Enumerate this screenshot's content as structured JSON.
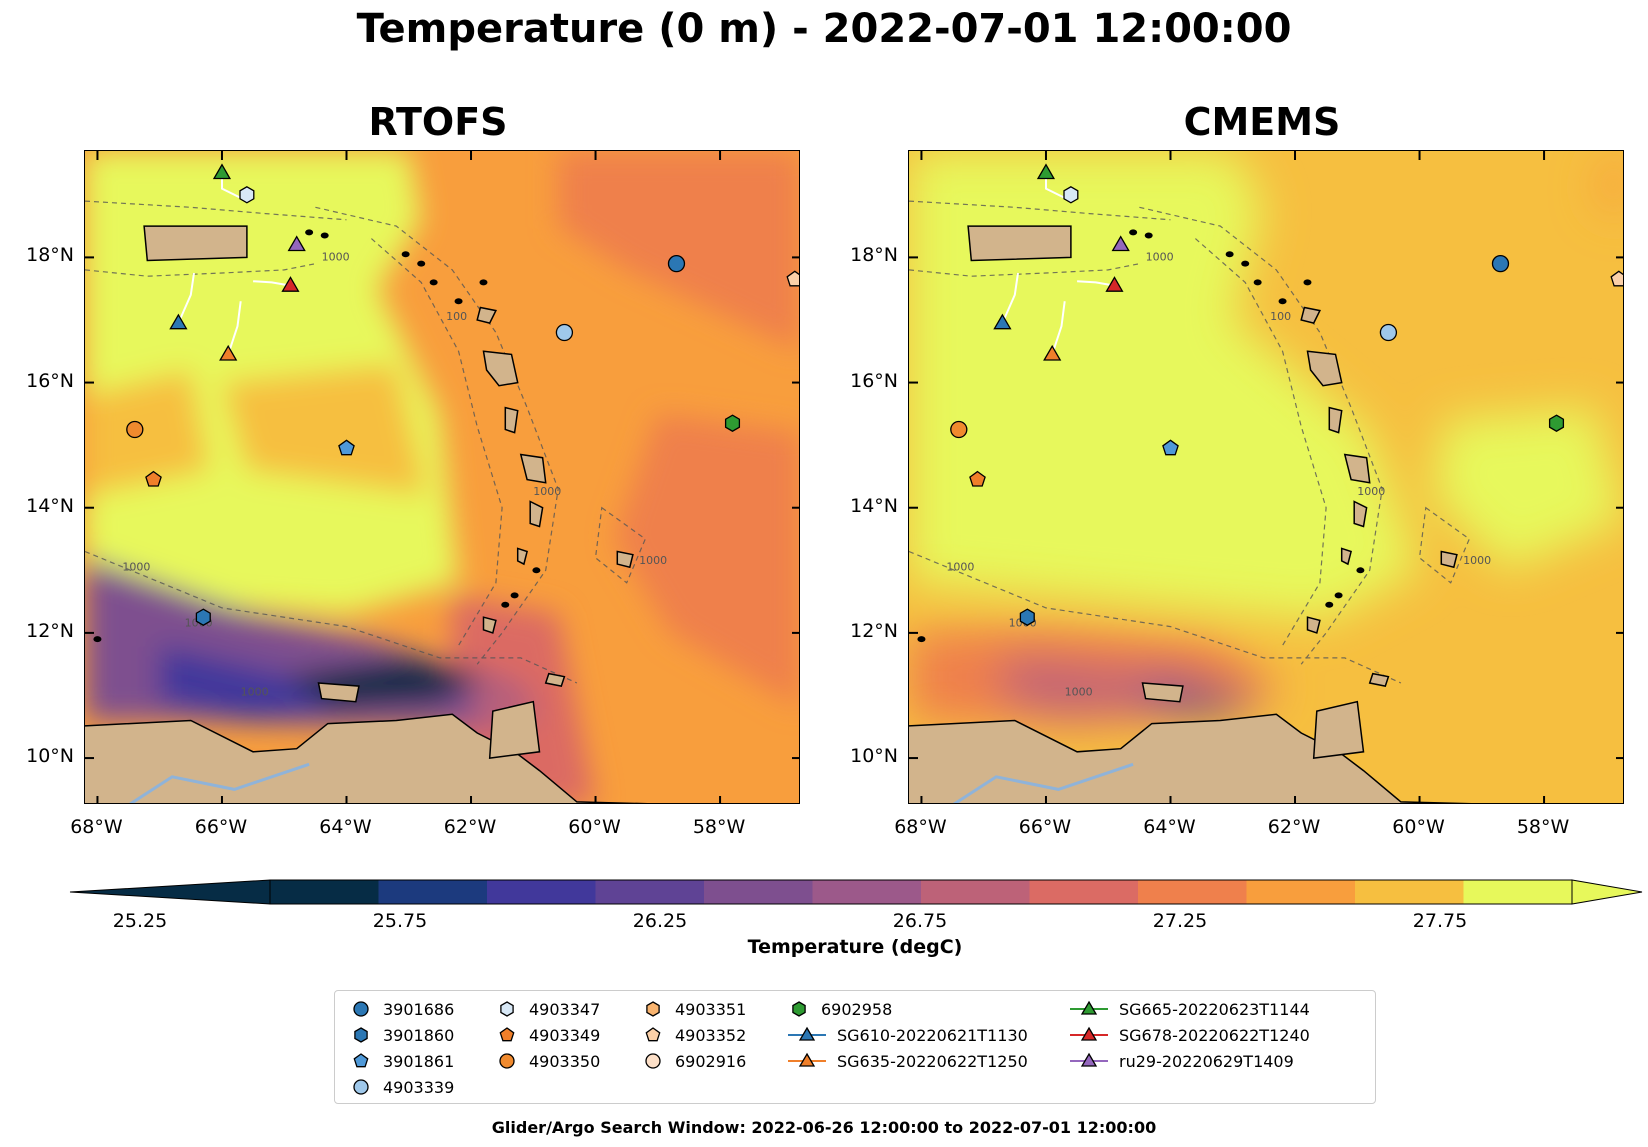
{
  "title": "Temperature (0 m) - 2022-07-01 12:00:00",
  "panels": [
    {
      "name": "RTOFS"
    },
    {
      "name": "CMEMS"
    }
  ],
  "lat_ticks": [
    "18°N",
    "16°N",
    "14°N",
    "12°N",
    "10°N"
  ],
  "lon_ticks": [
    "68°W",
    "66°W",
    "64°W",
    "62°W",
    "60°W",
    "58°W"
  ],
  "extent": {
    "lon_min": -68.2,
    "lon_max": -56.7,
    "lat_min": 9.25,
    "lat_max": 19.7
  },
  "bathymetry_labels": [
    "1000",
    "100",
    "1000",
    "1000",
    "1000",
    "1000",
    "1000"
  ],
  "colorbar": {
    "title": "Temperature (degC)",
    "tick_labels": [
      "25.25",
      "25.75",
      "26.25",
      "26.75",
      "27.25",
      "27.75"
    ],
    "colors": [
      "#062c45",
      "#1c3a7e",
      "#41389b",
      "#5f4395",
      "#7e4f8f",
      "#9c598a",
      "#bd6278",
      "#db6b64",
      "#ef804c",
      "#f89e3d",
      "#f6bf40",
      "#e7f85b"
    ]
  },
  "legend": [
    {
      "label": "3901686",
      "marker": "circle",
      "color": "#2b77b4"
    },
    {
      "label": "3901860",
      "marker": "hexagon",
      "color": "#2b77b4"
    },
    {
      "label": "3901861",
      "marker": "pentagon",
      "color": "#4f99d8"
    },
    {
      "label": "4903339",
      "marker": "circle",
      "color": "#9fc8ea"
    },
    {
      "label": "4903347",
      "marker": "hexagon",
      "color": "#d8e8f6"
    },
    {
      "label": "4903349",
      "marker": "pentagon",
      "color": "#f07f2a"
    },
    {
      "label": "4903350",
      "marker": "circle",
      "color": "#f08a2e"
    },
    {
      "label": "4903351",
      "marker": "hexagon",
      "color": "#f9b46f"
    },
    {
      "label": "4903352",
      "marker": "pentagon",
      "color": "#fbd0a8"
    },
    {
      "label": "6902916",
      "marker": "circle",
      "color": "#fde0c8"
    },
    {
      "label": "6902958",
      "marker": "hexagon",
      "color": "#2e9b32"
    },
    {
      "label": "SG610-20220621T1130",
      "marker": "triangle-line",
      "color": "#2b77b4"
    },
    {
      "label": "SG635-20220622T1250",
      "marker": "triangle-line",
      "color": "#f07f2a"
    },
    {
      "label": "SG665-20220623T1144",
      "marker": "triangle-line",
      "color": "#2e9b32"
    },
    {
      "label": "SG678-20220622T1240",
      "marker": "triangle-line",
      "color": "#d62728"
    },
    {
      "label": "ru29-20220629T1409",
      "marker": "triangle-line",
      "color": "#9467bd"
    }
  ],
  "markers": [
    {
      "label": "3901686",
      "lon": -58.7,
      "lat": 17.9
    },
    {
      "label": "4903339",
      "lon": -60.5,
      "lat": 16.8
    },
    {
      "label": "6902958",
      "lon": -57.8,
      "lat": 15.35
    },
    {
      "label": "4903352",
      "lon": -56.8,
      "lat": 17.65
    },
    {
      "label": "4903347",
      "lon": -65.6,
      "lat": 19.0
    },
    {
      "label": "3901861",
      "lon": -64.0,
      "lat": 14.95
    },
    {
      "label": "4903350",
      "lon": -67.4,
      "lat": 15.25
    },
    {
      "label": "4903349",
      "lon": -67.1,
      "lat": 14.45
    },
    {
      "label": "3901860",
      "lon": -66.3,
      "lat": 12.25
    },
    {
      "label": "SG610-20220621T1130",
      "lon": -66.7,
      "lat": 16.95
    },
    {
      "label": "SG635-20220622T1250",
      "lon": -65.9,
      "lat": 16.45
    },
    {
      "label": "SG665-20220623T1144",
      "lon": -66.0,
      "lat": 19.35
    },
    {
      "label": "SG678-20220622T1240",
      "lon": -64.9,
      "lat": 17.55
    },
    {
      "label": "ru29-20220629T1409",
      "lon": -64.8,
      "lat": 18.2
    }
  ],
  "footer": "Glider/Argo Search Window: 2022-06-26 12:00:00 to 2022-07-01 12:00:00"
}
